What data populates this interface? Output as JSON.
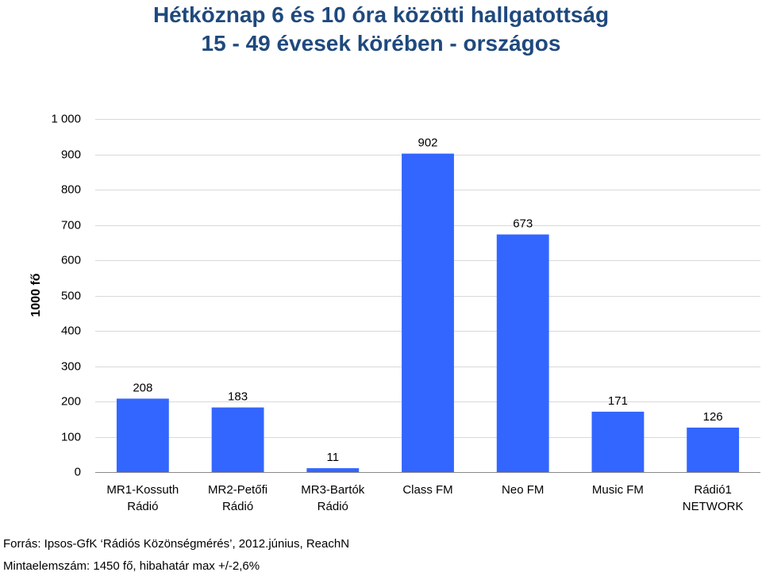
{
  "chart_data": {
    "type": "bar",
    "title": [
      "Hétköznap 6 és 10 óra közötti hallgatottság",
      "15 - 49 évesek körében - országos"
    ],
    "ylabel": "1000 fő",
    "xlabel": "",
    "categories": [
      [
        "MR1-Kossuth",
        "Rádió"
      ],
      [
        "MR2-Petőfi",
        "Rádió"
      ],
      [
        "MR3-Bartók",
        "Rádió"
      ],
      [
        "Class FM"
      ],
      [
        "Neo FM"
      ],
      [
        "Music FM"
      ],
      [
        "Rádió1",
        "NETWORK"
      ]
    ],
    "values": [
      208,
      183,
      11,
      902,
      673,
      171,
      126
    ],
    "data_labels": [
      "208",
      "183",
      "11",
      "902",
      "673",
      "171",
      "126"
    ],
    "ylim": [
      0,
      1000
    ],
    "yticks": [
      0,
      100,
      200,
      300,
      400,
      500,
      600,
      700,
      800,
      900,
      1000
    ],
    "ytick_labels": [
      "0",
      "100",
      "200",
      "300",
      "400",
      "500",
      "600",
      "700",
      "800",
      "900",
      "1 000"
    ],
    "bar_color": "#3366ff",
    "grid": true,
    "legend": "none"
  },
  "footer": {
    "source": "Forrás: Ipsos-GfK ‘Rádiós Közönségmérés’, 2012.június, ReachN",
    "sample": "Mintaelemszám: 1450 fő, hibahatár max +/-2,6%"
  }
}
